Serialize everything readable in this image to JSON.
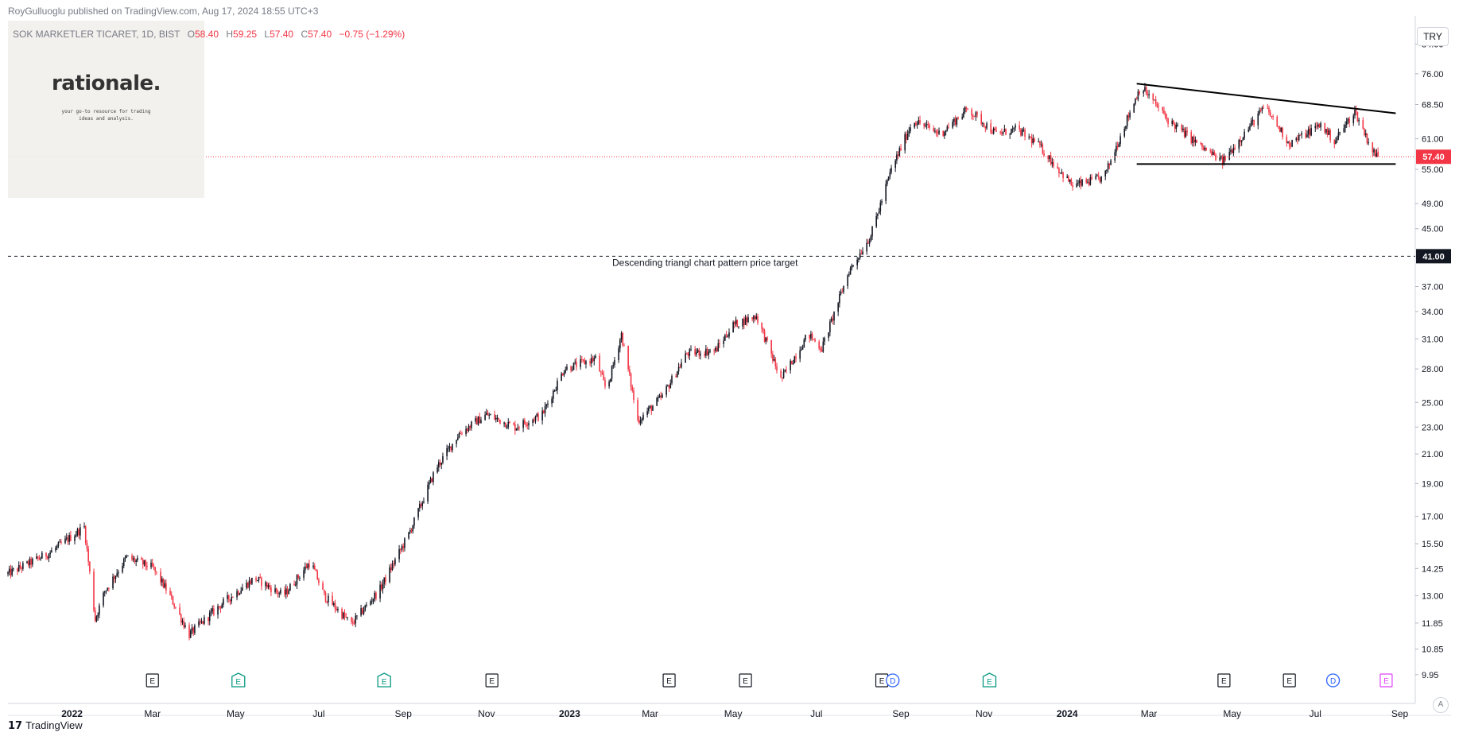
{
  "header": {
    "publisher": "RoyGulluoglu published on TradingView.com,",
    "timestamp": "Aug 17, 2024 18:55 UTC+3"
  },
  "symbol": {
    "name": "SOK MARKETLER TICARET, 1D, BIST",
    "open_label": "O",
    "open": "58.40",
    "high_label": "H",
    "high": "59.25",
    "low_label": "L",
    "low": "57.40",
    "close_label": "C",
    "close": "57.40",
    "change": "−0.75 (−1.29%)"
  },
  "logo": {
    "text": "rationale.",
    "tagline": "your go-to resource for trading ideas and analysis."
  },
  "currency_button": "TRY",
  "auto_button": "A",
  "footer": {
    "brand": "TradingView"
  },
  "colors": {
    "up": "#131722",
    "down": "#f23645",
    "price_label_bg": "#f23645",
    "target_label_bg": "#131722",
    "dividend_icon": "#2962ff",
    "earnings_icon": "#131722",
    "split_icon": "#089981",
    "split_icon2": "#e040fb"
  },
  "chart_data": {
    "type": "candlestick",
    "scale": "log",
    "y_axis_ticks": [
      "84.00",
      "76.00",
      "68.50",
      "61.00",
      "55.00",
      "49.00",
      "45.00",
      "37.00",
      "34.00",
      "31.00",
      "28.00",
      "25.00",
      "23.00",
      "21.00",
      "19.00",
      "17.00",
      "15.50",
      "14.25",
      "13.00",
      "11.85",
      "10.85",
      "9.95"
    ],
    "x_axis_ticks": [
      "2022",
      "Mar",
      "May",
      "Jul",
      "Sep",
      "Nov",
      "2023",
      "Mar",
      "May",
      "Jul",
      "Sep",
      "Nov",
      "2024",
      "Mar",
      "May",
      "Jul",
      "Sep"
    ],
    "ylim": [
      9.4,
      90
    ],
    "x_range": [
      "2021-11-15",
      "2024-09-10"
    ],
    "last_price": {
      "value": 57.4,
      "label": "57.40"
    },
    "price_target": {
      "value": 41.0,
      "label": "41.00",
      "text": "Descending triangl chart pattern price target"
    },
    "trendlines": [
      {
        "from": [
          "2024-02-21",
          73.5
        ],
        "to": [
          "2024-08-29",
          66.5
        ]
      },
      {
        "from": [
          "2024-02-21",
          56.0
        ],
        "to": [
          "2024-08-29",
          56.0
        ]
      }
    ],
    "price_path": [
      [
        "2021-11-15",
        14.0
      ],
      [
        "2021-12-15",
        15.0
      ],
      [
        "2022-01-10",
        16.4
      ],
      [
        "2022-01-18",
        12.0
      ],
      [
        "2022-01-25",
        13.2
      ],
      [
        "2022-02-10",
        14.8
      ],
      [
        "2022-03-01",
        14.3
      ],
      [
        "2022-03-12",
        13.2
      ],
      [
        "2022-03-28",
        11.4
      ],
      [
        "2022-04-20",
        12.6
      ],
      [
        "2022-05-15",
        13.8
      ],
      [
        "2022-06-05",
        13.0
      ],
      [
        "2022-06-25",
        14.6
      ],
      [
        "2022-07-05",
        13.0
      ],
      [
        "2022-07-25",
        11.8
      ],
      [
        "2022-08-15",
        13.3
      ],
      [
        "2022-09-05",
        16.0
      ],
      [
        "2022-09-25",
        20.0
      ],
      [
        "2022-10-12",
        22.5
      ],
      [
        "2022-11-01",
        24.0
      ],
      [
        "2022-11-22",
        23.0
      ],
      [
        "2022-12-12",
        24.0
      ],
      [
        "2022-12-28",
        28.0
      ],
      [
        "2023-01-20",
        29.0
      ],
      [
        "2023-01-28",
        26.0
      ],
      [
        "2023-02-08",
        31.5
      ],
      [
        "2023-02-20",
        23.5
      ],
      [
        "2023-03-10",
        25.5
      ],
      [
        "2023-03-28",
        29.5
      ],
      [
        "2023-04-18",
        29.8
      ],
      [
        "2023-05-01",
        32.5
      ],
      [
        "2023-05-18",
        33.5
      ],
      [
        "2023-06-05",
        27.0
      ],
      [
        "2023-06-25",
        31.5
      ],
      [
        "2023-07-05",
        30.0
      ],
      [
        "2023-07-25",
        39.0
      ],
      [
        "2023-08-10",
        44.0
      ],
      [
        "2023-08-25",
        55.0
      ],
      [
        "2023-09-10",
        65.0
      ],
      [
        "2023-09-30",
        62.0
      ],
      [
        "2023-10-20",
        67.5
      ],
      [
        "2023-11-10",
        62.0
      ],
      [
        "2023-11-25",
        63.0
      ],
      [
        "2023-12-10",
        60.0
      ],
      [
        "2024-01-05",
        52.0
      ],
      [
        "2024-01-28",
        53.5
      ],
      [
        "2024-02-15",
        66.0
      ],
      [
        "2024-02-24",
        73.0
      ],
      [
        "2024-03-15",
        65.0
      ],
      [
        "2024-04-10",
        59.0
      ],
      [
        "2024-04-24",
        56.5
      ],
      [
        "2024-05-25",
        68.0
      ],
      [
        "2024-06-12",
        60.0
      ],
      [
        "2024-07-05",
        64.0
      ],
      [
        "2024-07-15",
        60.5
      ],
      [
        "2024-07-30",
        67.0
      ],
      [
        "2024-08-12",
        58.5
      ],
      [
        "2024-08-16",
        57.4
      ]
    ],
    "events": [
      {
        "date": "2022-03-01",
        "type": "E"
      },
      {
        "date": "2022-05-03",
        "type": "S"
      },
      {
        "date": "2022-08-18",
        "type": "S"
      },
      {
        "date": "2022-11-05",
        "type": "E"
      },
      {
        "date": "2023-03-15",
        "type": "E"
      },
      {
        "date": "2023-05-10",
        "type": "E"
      },
      {
        "date": "2023-08-18",
        "type": "E"
      },
      {
        "date": "2023-08-26",
        "type": "D"
      },
      {
        "date": "2023-11-05",
        "type": "S"
      },
      {
        "date": "2024-04-25",
        "type": "E"
      },
      {
        "date": "2024-06-12",
        "type": "E"
      },
      {
        "date": "2024-07-14",
        "type": "D"
      },
      {
        "date": "2024-08-22",
        "type": "E2"
      }
    ]
  }
}
